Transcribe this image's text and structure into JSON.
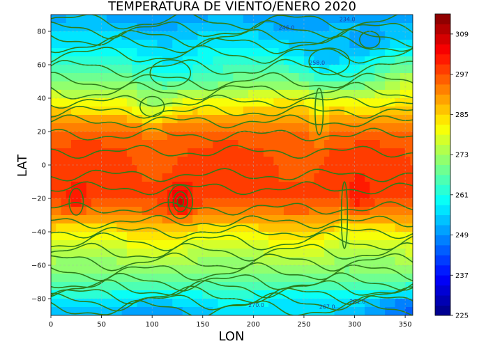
{
  "chart_data": {
    "type": "heatmap",
    "title": "TEMPERATURA DE VIENTO/ENERO 2020",
    "xlabel": "LON",
    "ylabel": "LAT",
    "xlim": [
      0,
      357.5
    ],
    "ylim": [
      -90,
      90
    ],
    "x_ticks": [
      "0",
      "50",
      "100",
      "150",
      "200",
      "250",
      "300",
      "350"
    ],
    "y_ticks": [
      "80",
      "60",
      "40",
      "20",
      "0",
      "−20",
      "−40",
      "−60",
      "−80"
    ],
    "grid": true,
    "colorbar": {
      "min": 225,
      "max": 315,
      "tick_labels": [
        "225",
        "237",
        "249",
        "261",
        "273",
        "285",
        "297",
        "309"
      ],
      "colormap": "jet"
    },
    "contour_color": "#2e7d1a",
    "contour_labels": [
      "234.0",
      "246.0",
      "258.0",
      "261.0",
      "267.0",
      "270.0"
    ],
    "approx_zonal_mean_temperature_K": {
      "lat": [
        90,
        80,
        70,
        60,
        50,
        40,
        30,
        20,
        10,
        0,
        -10,
        -20,
        -30,
        -40,
        -50,
        -60,
        -70,
        -80,
        -90
      ],
      "values": [
        250,
        254,
        258,
        264,
        270,
        279,
        288,
        294,
        297,
        298,
        298,
        298,
        292,
        283,
        277,
        272,
        268,
        258,
        250
      ]
    }
  }
}
